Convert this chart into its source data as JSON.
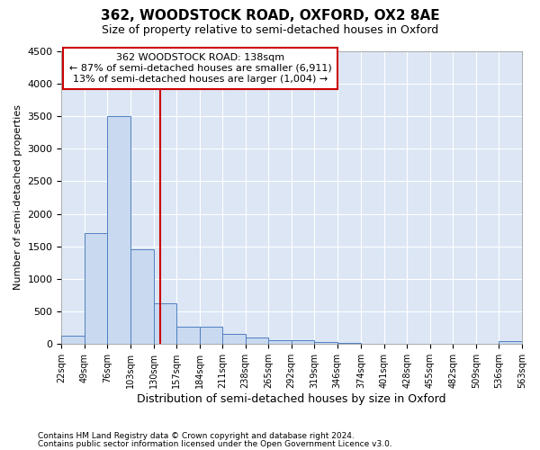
{
  "title_line1": "362, WOODSTOCK ROAD, OXFORD, OX2 8AE",
  "title_line2": "Size of property relative to semi-detached houses in Oxford",
  "xlabel": "Distribution of semi-detached houses by size in Oxford",
  "ylabel": "Number of semi-detached properties",
  "footnote1": "Contains HM Land Registry data © Crown copyright and database right 2024.",
  "footnote2": "Contains public sector information licensed under the Open Government Licence v3.0.",
  "annotation_line1": "362 WOODSTOCK ROAD: 138sqm",
  "annotation_line2": "← 87% of semi-detached houses are smaller (6,911)",
  "annotation_line3": "13% of semi-detached houses are larger (1,004) →",
  "subject_size": 138,
  "bar_color": "#c9d9f0",
  "bar_edge_color": "#5080c0",
  "vline_color": "#cc0000",
  "annotation_box_edge": "#cc0000",
  "background_color": "#ffffff",
  "plot_background": "#dce6f5",
  "grid_color": "#ffffff",
  "bin_edges": [
    22,
    49,
    76,
    103,
    130,
    157,
    184,
    211,
    238,
    265,
    292,
    319,
    346,
    374,
    401,
    428,
    455,
    482,
    509,
    536,
    563
  ],
  "bin_labels": [
    "22sqm",
    "49sqm",
    "76sqm",
    "103sqm",
    "130sqm",
    "157sqm",
    "184sqm",
    "211sqm",
    "238sqm",
    "265sqm",
    "292sqm",
    "319sqm",
    "346sqm",
    "374sqm",
    "401sqm",
    "428sqm",
    "455sqm",
    "482sqm",
    "509sqm",
    "536sqm",
    "563sqm"
  ],
  "bar_heights": [
    130,
    1700,
    3500,
    1450,
    630,
    270,
    270,
    155,
    100,
    55,
    55,
    30,
    20,
    0,
    0,
    0,
    0,
    0,
    0,
    40
  ],
  "ylim": [
    0,
    4500
  ],
  "yticks": [
    0,
    500,
    1000,
    1500,
    2000,
    2500,
    3000,
    3500,
    4000,
    4500
  ]
}
